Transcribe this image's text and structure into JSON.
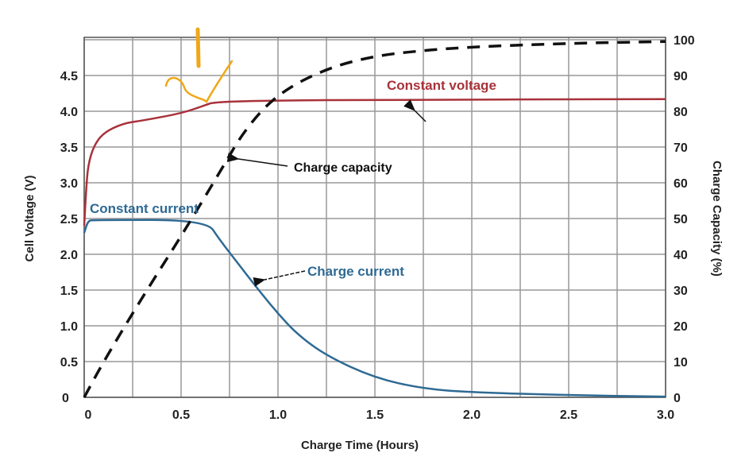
{
  "chart_data": {
    "type": "line",
    "xlabel": "Charge Time (Hours)",
    "ylabel": "Cell Voltage (V)",
    "y2label": "Charge Capacity (%)",
    "xlim": [
      0,
      3.0
    ],
    "ylim": [
      0,
      5.0
    ],
    "y2lim": [
      0,
      100
    ],
    "xticks": [
      "0",
      "0.5",
      "1.0",
      "1.5",
      "2.0",
      "2.5",
      "3.0"
    ],
    "xtick_values": [
      0,
      0.5,
      1.0,
      1.5,
      2.0,
      2.5,
      3.0
    ],
    "yticks": [
      "0",
      "0.5",
      "1.0",
      "1.5",
      "2.0",
      "2.5",
      "3.0",
      "3.5",
      "4.0",
      "4.5"
    ],
    "ytick_values": [
      0,
      0.5,
      1,
      1.5,
      2,
      2.5,
      3,
      3.5,
      4,
      4.5
    ],
    "y2ticks": [
      "0",
      "10",
      "20",
      "30",
      "40",
      "50",
      "60",
      "70",
      "80",
      "90",
      "100"
    ],
    "y2tick_values": [
      0,
      10,
      20,
      30,
      40,
      50,
      60,
      70,
      80,
      90,
      100
    ],
    "grid": true,
    "series": [
      {
        "name": "Cell voltage",
        "axis": "left",
        "color": "#a8323a",
        "dash": false,
        "x": [
          0,
          0.01,
          0.02,
          0.05,
          0.1,
          0.2,
          0.3,
          0.5,
          0.62,
          0.67,
          1.0,
          1.5,
          3.0
        ],
        "y": [
          2.4,
          2.9,
          3.25,
          3.52,
          3.7,
          3.83,
          3.87,
          3.97,
          4.08,
          4.13,
          4.15,
          4.16,
          4.17
        ]
      },
      {
        "name": "Charge current",
        "axis": "left",
        "color": "#2e6a94",
        "dash": false,
        "x": [
          0,
          0.02,
          0.05,
          0.63,
          0.7,
          0.8,
          0.9,
          1.0,
          1.1,
          1.25,
          1.5,
          1.75,
          2.0,
          2.5,
          3.0
        ],
        "y": [
          2.3,
          2.47,
          2.48,
          2.48,
          2.2,
          1.85,
          1.5,
          1.17,
          0.88,
          0.58,
          0.27,
          0.12,
          0.07,
          0.03,
          0.01
        ]
      },
      {
        "name": "Charge capacity",
        "axis": "right",
        "color": "#111111",
        "dash": true,
        "x": [
          0,
          0.1,
          0.3,
          0.5,
          0.7,
          0.83,
          1.0,
          1.25,
          1.5,
          1.75,
          2.0,
          2.5,
          3.0
        ],
        "y": [
          0,
          10,
          28,
          45,
          63,
          75,
          85,
          92,
          95.5,
          97,
          98,
          99,
          99.5
        ]
      }
    ],
    "annotations": [
      {
        "text": "Constant voltage",
        "color": "#a8323a"
      },
      {
        "text": "Charge capacity",
        "color": "#111111"
      },
      {
        "text": "Constant current",
        "color": "#2e6a94"
      },
      {
        "text": "Charge current",
        "color": "#2e6a94"
      }
    ],
    "highlight_color": "#f0a818"
  }
}
